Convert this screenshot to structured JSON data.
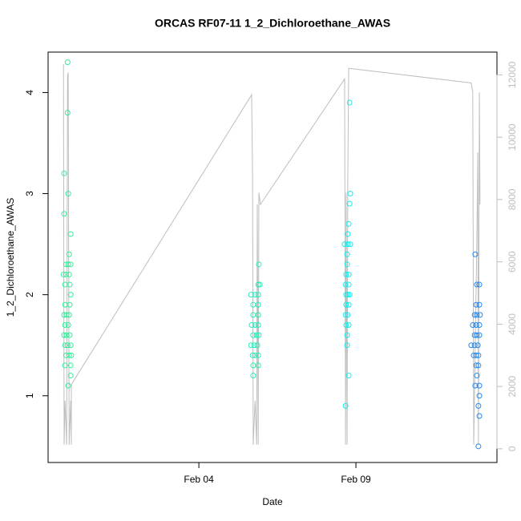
{
  "chart_data": {
    "type": "scatter",
    "title": "ORCAS RF07-11 1_2_Dichloroethane_AWAS",
    "x_label": "Date",
    "y_label": "1_2_Dichloroethane_AWAS",
    "xlim": [
      -0.8,
      13.49
    ],
    "xticks": [
      {
        "value": 4,
        "label": "Feb 04"
      },
      {
        "value": 9,
        "label": "Feb 09"
      }
    ],
    "ylim": [
      0.34,
      4.4
    ],
    "yticks": [
      1,
      2,
      3,
      4
    ],
    "y2lim": [
      -440,
      12730
    ],
    "y2ticks": [
      0,
      2000,
      4000,
      6000,
      8000,
      10000,
      12000
    ],
    "series": [
      {
        "color": "#33ee99",
        "x": [
          -0.18,
          -0.18,
          -0.29,
          -0.16,
          -0.29,
          -0.08,
          -0.13,
          -0.23,
          -0.16,
          -0.08,
          -0.31,
          -0.23,
          -0.13,
          -0.26,
          -0.11,
          -0.08,
          -0.26,
          -0.11,
          -0.29,
          -0.21,
          -0.13,
          -0.26,
          -0.16,
          -0.29,
          -0.21,
          -0.11,
          -0.26,
          -0.18,
          -0.08,
          -0.23,
          -0.13,
          -0.06,
          -0.26,
          -0.08,
          -0.08,
          -0.16
        ],
        "values": [
          4.3,
          3.8,
          3.2,
          3.0,
          2.8,
          2.6,
          2.4,
          2.3,
          2.3,
          2.3,
          2.2,
          2.2,
          2.2,
          2.1,
          2.1,
          2.0,
          1.9,
          1.9,
          1.8,
          1.8,
          1.8,
          1.7,
          1.7,
          1.6,
          1.6,
          1.6,
          1.5,
          1.5,
          1.5,
          1.4,
          1.4,
          1.4,
          1.3,
          1.3,
          1.2,
          1.1
        ]
      },
      {
        "color": "#22eebb",
        "x": [
          5.91,
          5.89,
          5.94,
          5.66,
          5.79,
          5.89,
          5.73,
          5.89,
          5.73,
          5.89,
          5.68,
          5.79,
          5.89,
          5.73,
          5.84,
          5.91,
          5.66,
          5.76,
          5.86,
          5.71,
          5.79,
          5.89,
          5.73,
          5.89,
          5.73
        ],
        "values": [
          2.3,
          2.1,
          2.1,
          2.0,
          2.0,
          2.0,
          1.9,
          1.9,
          1.8,
          1.8,
          1.7,
          1.7,
          1.7,
          1.6,
          1.6,
          1.6,
          1.5,
          1.5,
          1.5,
          1.4,
          1.4,
          1.4,
          1.3,
          1.3,
          1.2
        ]
      },
      {
        "color": "#11eeee",
        "x": [
          8.8,
          8.82,
          8.8,
          8.77,
          8.74,
          8.64,
          8.74,
          8.82,
          8.72,
          8.72,
          8.69,
          8.77,
          8.67,
          8.77,
          8.69,
          8.74,
          8.8,
          8.69,
          8.77,
          8.67,
          8.74,
          8.69,
          8.77,
          8.72,
          8.72,
          8.77,
          8.67
        ],
        "values": [
          3.9,
          3.0,
          2.9,
          2.7,
          2.6,
          2.5,
          2.5,
          2.5,
          2.4,
          2.3,
          2.2,
          2.2,
          2.1,
          2.1,
          2.0,
          2.0,
          2.0,
          1.9,
          1.9,
          1.8,
          1.8,
          1.7,
          1.7,
          1.6,
          1.5,
          1.2,
          0.9
        ]
      },
      {
        "color": "#2288ee",
        "x": [
          12.8,
          12.85,
          12.93,
          12.83,
          12.93,
          12.78,
          12.85,
          12.95,
          12.72,
          12.83,
          12.93,
          12.78,
          12.85,
          12.93,
          12.67,
          12.78,
          12.88,
          12.75,
          12.83,
          12.9,
          12.83,
          12.9,
          12.85,
          12.8,
          12.93,
          12.93,
          12.9,
          12.93,
          12.9
        ],
        "values": [
          2.4,
          2.1,
          2.1,
          1.9,
          1.9,
          1.8,
          1.8,
          1.8,
          1.7,
          1.7,
          1.7,
          1.6,
          1.6,
          1.6,
          1.5,
          1.5,
          1.5,
          1.4,
          1.4,
          1.4,
          1.3,
          1.3,
          1.2,
          1.1,
          1.1,
          1.0,
          0.9,
          0.8,
          0.5
        ]
      },
      {
        "color": "#bebebe",
        "axis": "y2",
        "x": [
          -0.31,
          -0.29,
          -0.26,
          -0.21,
          -0.18,
          -0.16,
          -0.13,
          -0.08,
          -0.06,
          -0.06,
          5.68,
          5.71,
          5.73,
          5.79,
          5.84,
          5.86,
          5.89,
          5.91,
          5.96,
          8.64,
          8.67,
          8.69,
          8.72,
          8.74,
          8.77,
          12.67,
          12.72,
          12.75,
          12.85,
          12.88,
          12.9,
          12.93,
          12.95
        ],
        "values": [
          12340,
          130,
          1540,
          130,
          11950,
          12080,
          130,
          1540,
          130,
          2060,
          11360,
          8740,
          130,
          1540,
          130,
          7840,
          130,
          8220,
          7840,
          11870,
          130,
          8220,
          130,
          8480,
          12210,
          11740,
          11440,
          130,
          6680,
          9510,
          130,
          11440,
          7840
        ]
      }
    ]
  }
}
